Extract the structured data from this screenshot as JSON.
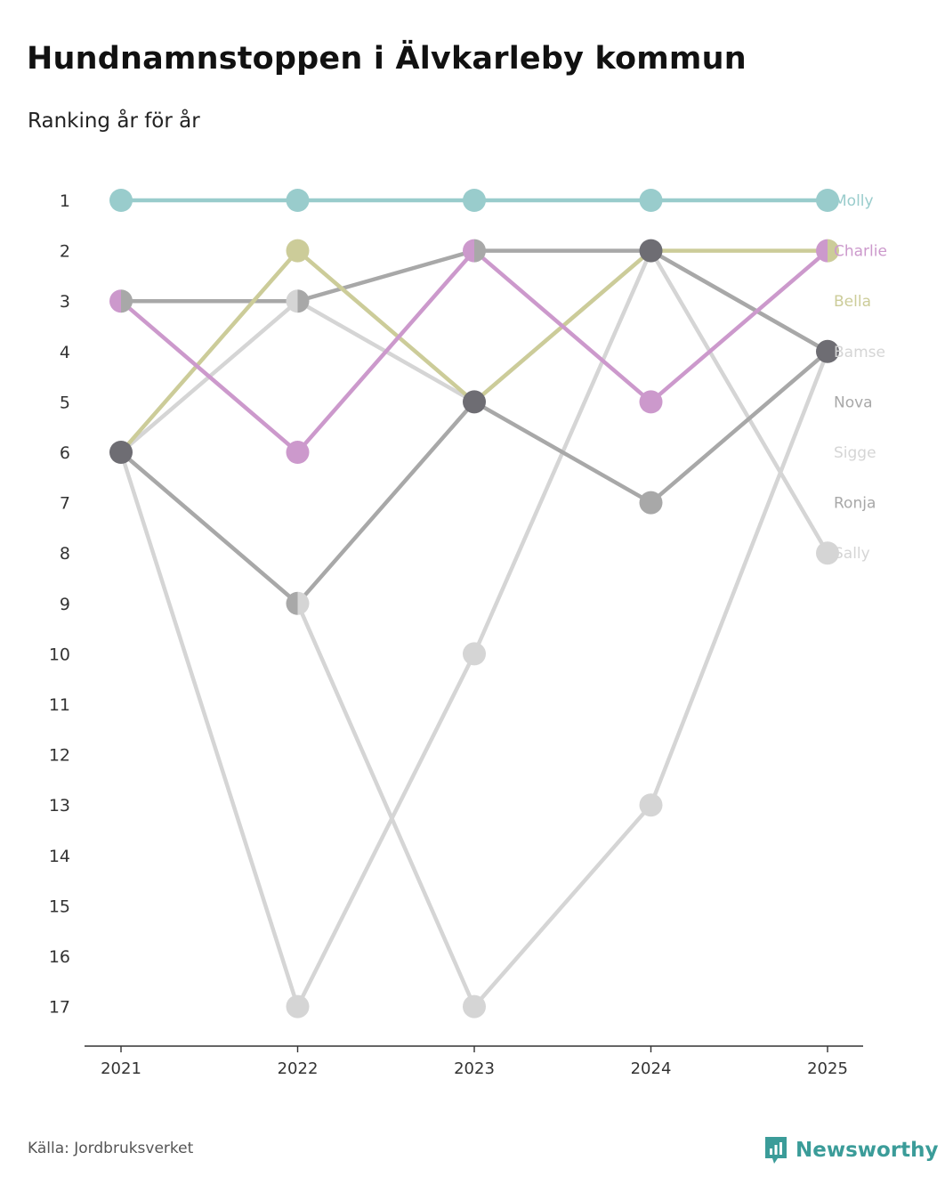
{
  "title": "Hundnamnstoppen i Älvkarleby kommun",
  "subtitle": "Ranking år för år",
  "source": "Källa: Jordbruksverket",
  "brand": "Newsworthy",
  "chart_data": {
    "type": "line",
    "title": "Hundnamnstoppen i Älvkarleby kommun",
    "subtitle": "Ranking år för år",
    "xlabel": "",
    "ylabel": "",
    "x": [
      "2021",
      "2022",
      "2023",
      "2024",
      "2025"
    ],
    "y_ticks": [
      "1",
      "2",
      "3",
      "4",
      "5",
      "6",
      "7",
      "8",
      "9",
      "10",
      "11",
      "12",
      "13",
      "14",
      "15",
      "16",
      "17"
    ],
    "ylim": [
      1,
      17
    ],
    "y_inverted": true,
    "grid": false,
    "series": [
      {
        "name": "Molly",
        "values": [
          1,
          1,
          1,
          1,
          1
        ],
        "color": "#99cccc"
      },
      {
        "name": "Charlie",
        "values": [
          3,
          6,
          2,
          5,
          2
        ],
        "color": "#cc99cc"
      },
      {
        "name": "Bella",
        "values": [
          6,
          2,
          5,
          2,
          2
        ],
        "color": "#cccc99"
      },
      {
        "name": "Bamse",
        "values": [
          6,
          3,
          5,
          2,
          8
        ],
        "color": "#d5d5d5"
      },
      {
        "name": "Nova",
        "values": [
          6,
          9,
          5,
          7,
          4
        ],
        "color": "#a8a8a8"
      },
      {
        "name": "Sigge",
        "values": [
          6,
          17,
          10,
          2,
          4
        ],
        "color": "#d5d5d5"
      },
      {
        "name": "Ronja",
        "values": [
          3,
          3,
          2,
          2,
          4
        ],
        "color": "#a8a8a8"
      },
      {
        "name": "Sally",
        "values": [
          6,
          9,
          17,
          13,
          4
        ],
        "color": "#d5d5d5"
      }
    ],
    "highlight_color": "#6e6d73"
  }
}
